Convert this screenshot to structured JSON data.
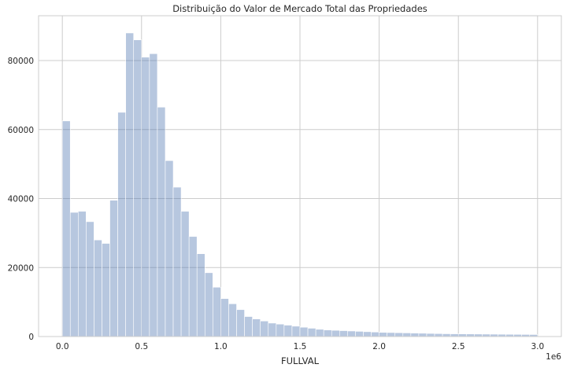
{
  "chart_data": {
    "type": "bar",
    "title": "Distribuição do Valor de Mercado Total das Propriedades",
    "xlabel": "FULLVAL",
    "ylabel": "",
    "x_offset_label": "1e6",
    "xlim": [
      -0.15,
      3.15
    ],
    "ylim": [
      0,
      93000
    ],
    "x_ticks": [
      0.0,
      0.5,
      1.0,
      1.5,
      2.0,
      2.5,
      3.0
    ],
    "x_tick_labels": [
      "0.0",
      "0.5",
      "1.0",
      "1.5",
      "2.0",
      "2.5",
      "3.0"
    ],
    "y_ticks": [
      0,
      20000,
      40000,
      60000,
      80000
    ],
    "y_tick_labels": [
      "0",
      "20000",
      "40000",
      "60000",
      "80000"
    ],
    "grid": true,
    "bin_width": 0.05,
    "bin_start": 0.0,
    "values": [
      62500,
      36000,
      36300,
      33300,
      28000,
      27000,
      39500,
      65000,
      88000,
      86000,
      81000,
      82000,
      66500,
      51000,
      43300,
      36300,
      29000,
      24000,
      18500,
      14300,
      11000,
      9500,
      7800,
      5800,
      5100,
      4500,
      3900,
      3600,
      3300,
      3000,
      2700,
      2400,
      2100,
      1900,
      1800,
      1700,
      1600,
      1500,
      1400,
      1300,
      1200,
      1150,
      1100,
      1050,
      1000,
      950,
      900,
      850,
      800,
      780,
      760,
      740,
      720,
      700,
      680,
      660,
      640,
      620,
      600,
      580
    ]
  }
}
